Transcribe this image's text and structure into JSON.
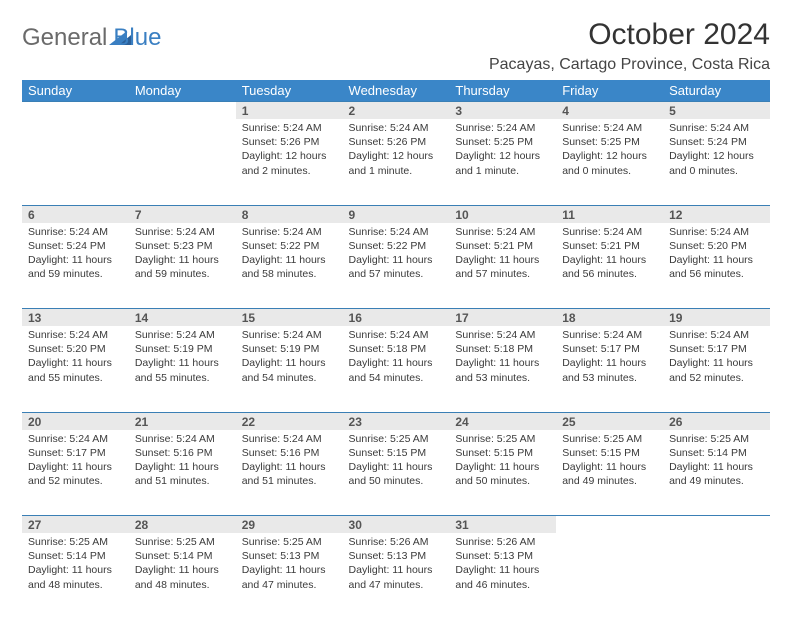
{
  "logo": {
    "word1": "General",
    "word2": "Blue"
  },
  "title": "October 2024",
  "location": "Pacayas, Cartago Province, Costa Rica",
  "colors": {
    "header_bg": "#3a86c8",
    "header_text": "#ffffff",
    "row_stripe": "#e9e9e9",
    "row_border": "#3a7fb5",
    "logo_gray": "#6a6a6a",
    "logo_blue": "#3a7fc2",
    "body_text": "#3a3a3a"
  },
  "day_labels": [
    "Sunday",
    "Monday",
    "Tuesday",
    "Wednesday",
    "Thursday",
    "Friday",
    "Saturday"
  ],
  "weeks": [
    [
      null,
      null,
      {
        "n": "1",
        "sr": "5:24 AM",
        "ss": "5:26 PM",
        "dl": "12 hours and 2 minutes."
      },
      {
        "n": "2",
        "sr": "5:24 AM",
        "ss": "5:26 PM",
        "dl": "12 hours and 1 minute."
      },
      {
        "n": "3",
        "sr": "5:24 AM",
        "ss": "5:25 PM",
        "dl": "12 hours and 1 minute."
      },
      {
        "n": "4",
        "sr": "5:24 AM",
        "ss": "5:25 PM",
        "dl": "12 hours and 0 minutes."
      },
      {
        "n": "5",
        "sr": "5:24 AM",
        "ss": "5:24 PM",
        "dl": "12 hours and 0 minutes."
      }
    ],
    [
      {
        "n": "6",
        "sr": "5:24 AM",
        "ss": "5:24 PM",
        "dl": "11 hours and 59 minutes."
      },
      {
        "n": "7",
        "sr": "5:24 AM",
        "ss": "5:23 PM",
        "dl": "11 hours and 59 minutes."
      },
      {
        "n": "8",
        "sr": "5:24 AM",
        "ss": "5:22 PM",
        "dl": "11 hours and 58 minutes."
      },
      {
        "n": "9",
        "sr": "5:24 AM",
        "ss": "5:22 PM",
        "dl": "11 hours and 57 minutes."
      },
      {
        "n": "10",
        "sr": "5:24 AM",
        "ss": "5:21 PM",
        "dl": "11 hours and 57 minutes."
      },
      {
        "n": "11",
        "sr": "5:24 AM",
        "ss": "5:21 PM",
        "dl": "11 hours and 56 minutes."
      },
      {
        "n": "12",
        "sr": "5:24 AM",
        "ss": "5:20 PM",
        "dl": "11 hours and 56 minutes."
      }
    ],
    [
      {
        "n": "13",
        "sr": "5:24 AM",
        "ss": "5:20 PM",
        "dl": "11 hours and 55 minutes."
      },
      {
        "n": "14",
        "sr": "5:24 AM",
        "ss": "5:19 PM",
        "dl": "11 hours and 55 minutes."
      },
      {
        "n": "15",
        "sr": "5:24 AM",
        "ss": "5:19 PM",
        "dl": "11 hours and 54 minutes."
      },
      {
        "n": "16",
        "sr": "5:24 AM",
        "ss": "5:18 PM",
        "dl": "11 hours and 54 minutes."
      },
      {
        "n": "17",
        "sr": "5:24 AM",
        "ss": "5:18 PM",
        "dl": "11 hours and 53 minutes."
      },
      {
        "n": "18",
        "sr": "5:24 AM",
        "ss": "5:17 PM",
        "dl": "11 hours and 53 minutes."
      },
      {
        "n": "19",
        "sr": "5:24 AM",
        "ss": "5:17 PM",
        "dl": "11 hours and 52 minutes."
      }
    ],
    [
      {
        "n": "20",
        "sr": "5:24 AM",
        "ss": "5:17 PM",
        "dl": "11 hours and 52 minutes."
      },
      {
        "n": "21",
        "sr": "5:24 AM",
        "ss": "5:16 PM",
        "dl": "11 hours and 51 minutes."
      },
      {
        "n": "22",
        "sr": "5:24 AM",
        "ss": "5:16 PM",
        "dl": "11 hours and 51 minutes."
      },
      {
        "n": "23",
        "sr": "5:25 AM",
        "ss": "5:15 PM",
        "dl": "11 hours and 50 minutes."
      },
      {
        "n": "24",
        "sr": "5:25 AM",
        "ss": "5:15 PM",
        "dl": "11 hours and 50 minutes."
      },
      {
        "n": "25",
        "sr": "5:25 AM",
        "ss": "5:15 PM",
        "dl": "11 hours and 49 minutes."
      },
      {
        "n": "26",
        "sr": "5:25 AM",
        "ss": "5:14 PM",
        "dl": "11 hours and 49 minutes."
      }
    ],
    [
      {
        "n": "27",
        "sr": "5:25 AM",
        "ss": "5:14 PM",
        "dl": "11 hours and 48 minutes."
      },
      {
        "n": "28",
        "sr": "5:25 AM",
        "ss": "5:14 PM",
        "dl": "11 hours and 48 minutes."
      },
      {
        "n": "29",
        "sr": "5:25 AM",
        "ss": "5:13 PM",
        "dl": "11 hours and 47 minutes."
      },
      {
        "n": "30",
        "sr": "5:26 AM",
        "ss": "5:13 PM",
        "dl": "11 hours and 47 minutes."
      },
      {
        "n": "31",
        "sr": "5:26 AM",
        "ss": "5:13 PM",
        "dl": "11 hours and 46 minutes."
      },
      null,
      null
    ]
  ],
  "labels": {
    "sunrise": "Sunrise:",
    "sunset": "Sunset:",
    "daylight": "Daylight:"
  }
}
